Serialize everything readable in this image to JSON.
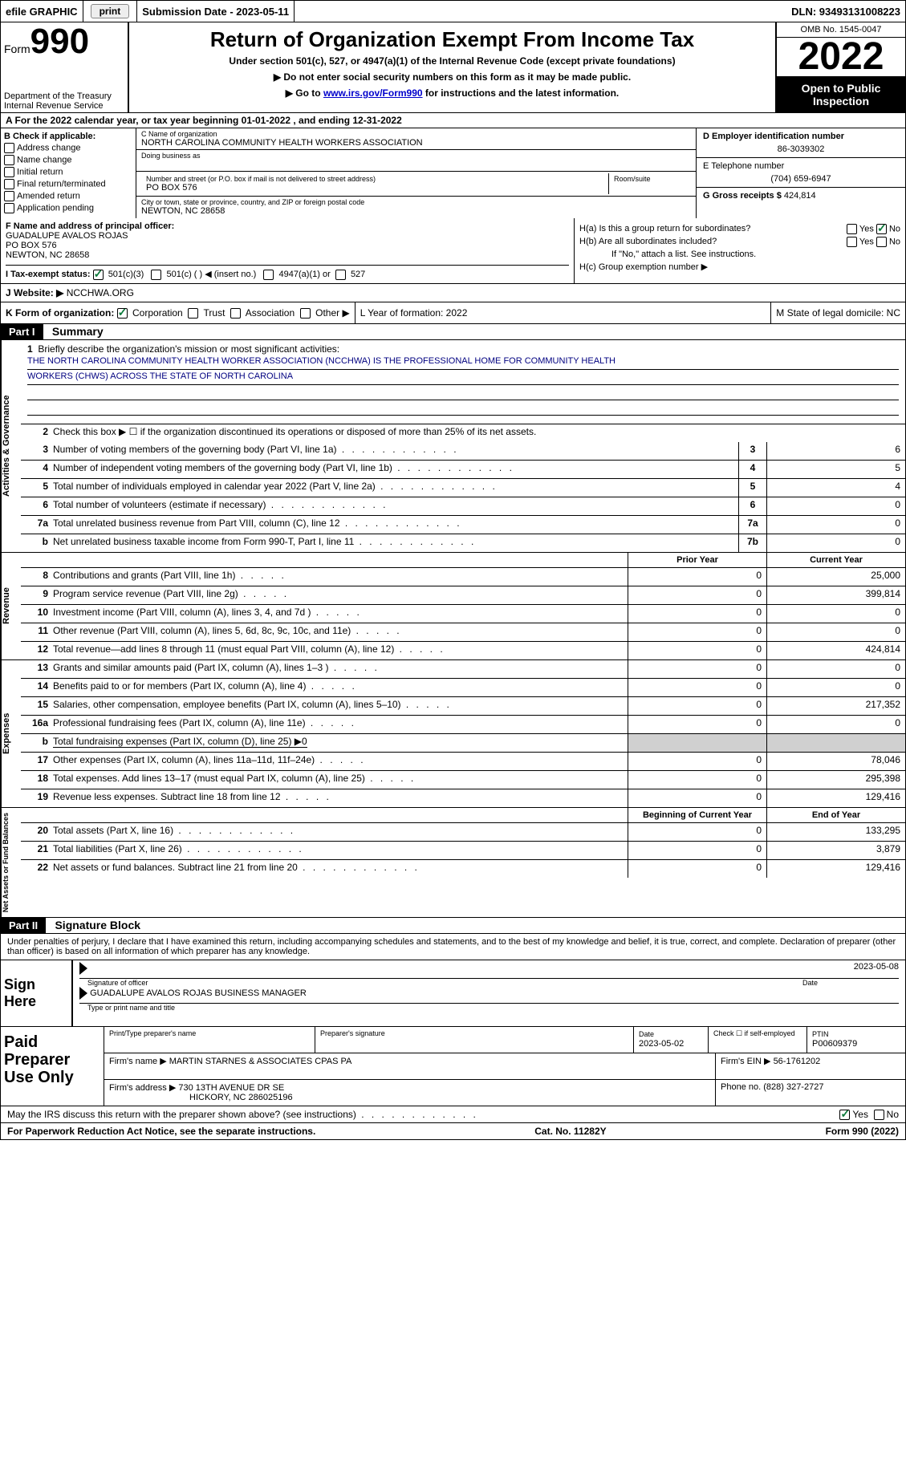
{
  "topbar": {
    "efile": "efile GRAPHIC",
    "print_btn": "print",
    "submission_label": "Submission Date - 2023-05-11",
    "dln": "DLN: 93493131008223"
  },
  "header": {
    "form_word": "Form",
    "form_num": "990",
    "dept": "Department of the Treasury",
    "irs": "Internal Revenue Service",
    "title": "Return of Organization Exempt From Income Tax",
    "subtitle": "Under section 501(c), 527, or 4947(a)(1) of the Internal Revenue Code (except private foundations)",
    "noSSN": "▶ Do not enter social security numbers on this form as it may be made public.",
    "goto_pre": "▶ Go to ",
    "goto_link": "www.irs.gov/Form990",
    "goto_post": " for instructions and the latest information.",
    "omb": "OMB No. 1545-0047",
    "year": "2022",
    "public1": "Open to Public",
    "public2": "Inspection"
  },
  "rowA": "A For the 2022 calendar year, or tax year beginning 01-01-2022    , and ending 12-31-2022",
  "boxB": {
    "label": "B Check if applicable:",
    "opts": [
      "Address change",
      "Name change",
      "Initial return",
      "Final return/terminated",
      "Amended return",
      "Application pending"
    ]
  },
  "boxC": {
    "name_lbl": "C Name of organization",
    "name": "NORTH CAROLINA COMMUNITY HEALTH WORKERS ASSOCIATION",
    "dba_lbl": "Doing business as",
    "street_lbl": "Number and street (or P.O. box if mail is not delivered to street address)",
    "room_lbl": "Room/suite",
    "street": "PO BOX 576",
    "city_lbl": "City or town, state or province, country, and ZIP or foreign postal code",
    "city": "NEWTON, NC  28658"
  },
  "boxDE": {
    "d_lbl": "D Employer identification number",
    "d_val": "86-3039302",
    "e_lbl": "E Telephone number",
    "e_val": "(704) 659-6947",
    "g_lbl": "G Gross receipts $",
    "g_val": "424,814"
  },
  "boxF": {
    "lbl": "F Name and address of principal officer:",
    "l1": "GUADALUPE AVALOS ROJAS",
    "l2": "PO BOX 576",
    "l3": "NEWTON, NC  28658"
  },
  "boxH": {
    "a": "H(a)  Is this a group return for subordinates?",
    "b": "H(b)  Are all subordinates included?",
    "bnote": "If \"No,\" attach a list. See instructions.",
    "c": "H(c)  Group exemption number ▶",
    "yes": "Yes",
    "no": "No"
  },
  "rowI": {
    "lbl": "I   Tax-exempt status:",
    "o1": "501(c)(3)",
    "o2": "501(c) (   ) ◀ (insert no.)",
    "o3": "4947(a)(1) or",
    "o4": "527"
  },
  "rowJ": {
    "lbl": "J   Website: ▶",
    "val": "  NCCHWA.ORG"
  },
  "rowK": {
    "lbl": "K Form of organization:",
    "o1": "Corporation",
    "o2": "Trust",
    "o3": "Association",
    "o4": "Other ▶",
    "L": "L Year of formation: 2022",
    "M": "M State of legal domicile: NC"
  },
  "partI": {
    "hdr": "Part I",
    "title": "Summary"
  },
  "summary": {
    "vtab1": "Activities & Governance",
    "vtab2": "Revenue",
    "vtab3": "Expenses",
    "vtab4": "Net Assets or Fund Balances",
    "l1": "Briefly describe the organization's mission or most significant activities:",
    "mission1": "THE NORTH CAROLINA COMMUNITY HEALTH WORKER ASSOCIATION (NCCHWA) IS THE PROFESSIONAL HOME FOR COMMUNITY HEALTH",
    "mission2": "WORKERS (CHWS) ACROSS THE STATE OF NORTH CAROLINA",
    "l2": "Check this box ▶ ☐  if the organization discontinued its operations or disposed of more than 25% of its net assets.",
    "rows_ag": [
      {
        "n": "3",
        "t": "Number of voting members of the governing body (Part VI, line 1a)",
        "box": "3",
        "v": "6"
      },
      {
        "n": "4",
        "t": "Number of independent voting members of the governing body (Part VI, line 1b)",
        "box": "4",
        "v": "5"
      },
      {
        "n": "5",
        "t": "Total number of individuals employed in calendar year 2022 (Part V, line 2a)",
        "box": "5",
        "v": "4"
      },
      {
        "n": "6",
        "t": "Total number of volunteers (estimate if necessary)",
        "box": "6",
        "v": "0"
      },
      {
        "n": "7a",
        "t": "Total unrelated business revenue from Part VIII, column (C), line 12",
        "box": "7a",
        "v": "0"
      },
      {
        "n": "b",
        "t": "Net unrelated business taxable income from Form 990-T, Part I, line 11",
        "box": "7b",
        "v": "0"
      }
    ],
    "col_prior": "Prior Year",
    "col_curr": "Current Year",
    "rows_rev": [
      {
        "n": "8",
        "t": "Contributions and grants (Part VIII, line 1h)",
        "p": "0",
        "c": "25,000"
      },
      {
        "n": "9",
        "t": "Program service revenue (Part VIII, line 2g)",
        "p": "0",
        "c": "399,814"
      },
      {
        "n": "10",
        "t": "Investment income (Part VIII, column (A), lines 3, 4, and 7d )",
        "p": "0",
        "c": "0"
      },
      {
        "n": "11",
        "t": "Other revenue (Part VIII, column (A), lines 5, 6d, 8c, 9c, 10c, and 11e)",
        "p": "0",
        "c": "0"
      },
      {
        "n": "12",
        "t": "Total revenue—add lines 8 through 11 (must equal Part VIII, column (A), line 12)",
        "p": "0",
        "c": "424,814"
      }
    ],
    "rows_exp": [
      {
        "n": "13",
        "t": "Grants and similar amounts paid (Part IX, column (A), lines 1–3 )",
        "p": "0",
        "c": "0"
      },
      {
        "n": "14",
        "t": "Benefits paid to or for members (Part IX, column (A), line 4)",
        "p": "0",
        "c": "0"
      },
      {
        "n": "15",
        "t": "Salaries, other compensation, employee benefits (Part IX, column (A), lines 5–10)",
        "p": "0",
        "c": "217,352"
      },
      {
        "n": "16a",
        "t": "Professional fundraising fees (Part IX, column (A), line 11e)",
        "p": "0",
        "c": "0"
      },
      {
        "n": "b",
        "t": "Total fundraising expenses (Part IX, column (D), line 25) ▶0",
        "grey": true
      },
      {
        "n": "17",
        "t": "Other expenses (Part IX, column (A), lines 11a–11d, 11f–24e)",
        "p": "0",
        "c": "78,046"
      },
      {
        "n": "18",
        "t": "Total expenses. Add lines 13–17 (must equal Part IX, column (A), line 25)",
        "p": "0",
        "c": "295,398"
      },
      {
        "n": "19",
        "t": "Revenue less expenses. Subtract line 18 from line 12",
        "p": "0",
        "c": "129,416"
      }
    ],
    "col_beg": "Beginning of Current Year",
    "col_end": "End of Year",
    "rows_net": [
      {
        "n": "20",
        "t": "Total assets (Part X, line 16)",
        "p": "0",
        "c": "133,295"
      },
      {
        "n": "21",
        "t": "Total liabilities (Part X, line 26)",
        "p": "0",
        "c": "3,879"
      },
      {
        "n": "22",
        "t": "Net assets or fund balances. Subtract line 21 from line 20",
        "p": "0",
        "c": "129,416"
      }
    ]
  },
  "partII": {
    "hdr": "Part II",
    "title": "Signature Block",
    "decl": "Under penalties of perjury, I declare that I have examined this return, including accompanying schedules and statements, and to the best of my knowledge and belief, it is true, correct, and complete. Declaration of preparer (other than officer) is based on all information of which preparer has any knowledge."
  },
  "sign": {
    "here": "Sign Here",
    "date": "2023-05-08",
    "sig_cap": "Signature of officer",
    "date_cap": "Date",
    "name": "GUADALUPE AVALOS ROJAS  BUSINESS MANAGER",
    "name_cap": "Type or print name and title"
  },
  "paid": {
    "lbl": "Paid Preparer Use Only",
    "h1": "Print/Type preparer's name",
    "h2": "Preparer's signature",
    "h3_l": "Date",
    "h3_v": "2023-05-02",
    "h4": "Check ☐ if self-employed",
    "h5_l": "PTIN",
    "h5_v": "P00609379",
    "firm_lbl": "Firm's name      ▶",
    "firm": "MARTIN STARNES & ASSOCIATES CPAS PA",
    "ein_lbl": "Firm's EIN ▶",
    "ein": "56-1761202",
    "addr_lbl": "Firm's address ▶",
    "addr1": "730 13TH AVENUE DR SE",
    "addr2": "HICKORY, NC  286025196",
    "phone_lbl": "Phone no.",
    "phone": "(828) 327-2727"
  },
  "discuss": {
    "q": "May the IRS discuss this return with the preparer shown above? (see instructions)",
    "yes": "Yes",
    "no": "No"
  },
  "footer": {
    "l": "For Paperwork Reduction Act Notice, see the separate instructions.",
    "m": "Cat. No. 11282Y",
    "r": "Form 990 (2022)"
  }
}
